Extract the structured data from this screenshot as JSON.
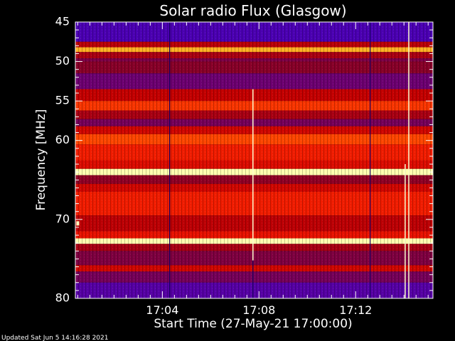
{
  "chart_data": {
    "type": "heatmap",
    "title": "Solar radio Flux (Glasgow)",
    "xlabel": "Start Time (27-May-21 17:00:00)",
    "ylabel": "Frequency [MHz]",
    "x_unit": "minutes after 17:00:00",
    "xlim": [
      0.4,
      15.2
    ],
    "ylim": [
      45,
      80
    ],
    "y_axis_inverted": true,
    "x_ticks": [
      {
        "value": 4,
        "label": "17:04"
      },
      {
        "value": 8,
        "label": "17:08"
      },
      {
        "value": 12,
        "label": "17:12"
      }
    ],
    "y_ticks": [
      {
        "value": 45,
        "label": "45"
      },
      {
        "value": 50,
        "label": "50"
      },
      {
        "value": 55,
        "label": "55"
      },
      {
        "value": 60,
        "label": "60"
      },
      {
        "value": 70,
        "label": "70"
      },
      {
        "value": 80,
        "label": "80"
      }
    ],
    "frequency_bands": [
      {
        "from": 45.0,
        "to": 47.5,
        "intensity": 0.1
      },
      {
        "from": 47.5,
        "to": 48.2,
        "intensity": 0.55
      },
      {
        "from": 48.2,
        "to": 48.8,
        "intensity": 0.92
      },
      {
        "from": 48.8,
        "to": 49.6,
        "intensity": 0.5
      },
      {
        "from": 49.6,
        "to": 50.0,
        "intensity": 0.35
      },
      {
        "from": 50.0,
        "to": 51.5,
        "intensity": 0.4
      },
      {
        "from": 51.5,
        "to": 53.5,
        "intensity": 0.28
      },
      {
        "from": 53.5,
        "to": 55.0,
        "intensity": 0.58
      },
      {
        "from": 55.0,
        "to": 56.2,
        "intensity": 0.8
      },
      {
        "from": 56.2,
        "to": 57.3,
        "intensity": 0.5
      },
      {
        "from": 57.3,
        "to": 58.2,
        "intensity": 0.32
      },
      {
        "from": 58.2,
        "to": 59.2,
        "intensity": 0.62
      },
      {
        "from": 59.2,
        "to": 60.5,
        "intensity": 0.84
      },
      {
        "from": 60.5,
        "to": 62.5,
        "intensity": 0.74
      },
      {
        "from": 62.5,
        "to": 63.6,
        "intensity": 0.66
      },
      {
        "from": 63.6,
        "to": 64.4,
        "intensity": 1.0
      },
      {
        "from": 64.4,
        "to": 65.5,
        "intensity": 0.42
      },
      {
        "from": 65.5,
        "to": 66.5,
        "intensity": 0.62
      },
      {
        "from": 66.5,
        "to": 69.5,
        "intensity": 0.74
      },
      {
        "from": 69.5,
        "to": 71.5,
        "intensity": 0.56
      },
      {
        "from": 71.5,
        "to": 72.4,
        "intensity": 0.7
      },
      {
        "from": 72.4,
        "to": 73.1,
        "intensity": 1.0
      },
      {
        "from": 73.1,
        "to": 74.0,
        "intensity": 0.5
      },
      {
        "from": 74.0,
        "to": 75.8,
        "intensity": 0.36
      },
      {
        "from": 75.8,
        "to": 76.6,
        "intensity": 0.62
      },
      {
        "from": 76.6,
        "to": 78.0,
        "intensity": 0.32
      },
      {
        "from": 78.0,
        "to": 80.0,
        "intensity": 0.16
      }
    ],
    "features": [
      {
        "kind": "dark_line",
        "time": 4.3,
        "from": 45,
        "to": 80
      },
      {
        "kind": "bright_line",
        "time": 7.75,
        "from": 53.5,
        "to": 75.2
      },
      {
        "kind": "dark_line",
        "time": 7.75,
        "from": 75.2,
        "to": 80
      },
      {
        "kind": "dark_line",
        "time": 12.6,
        "from": 45,
        "to": 80
      },
      {
        "kind": "bright_line",
        "time": 14.05,
        "from": 63.0,
        "to": 80
      },
      {
        "kind": "bright_line",
        "time": 14.2,
        "from": 45,
        "to": 80
      },
      {
        "kind": "bright_dot",
        "time": 0.5,
        "freq": 70.5
      }
    ]
  },
  "footer": {
    "updated": "Updated Sat Jun  5 14:16:28 2021"
  }
}
